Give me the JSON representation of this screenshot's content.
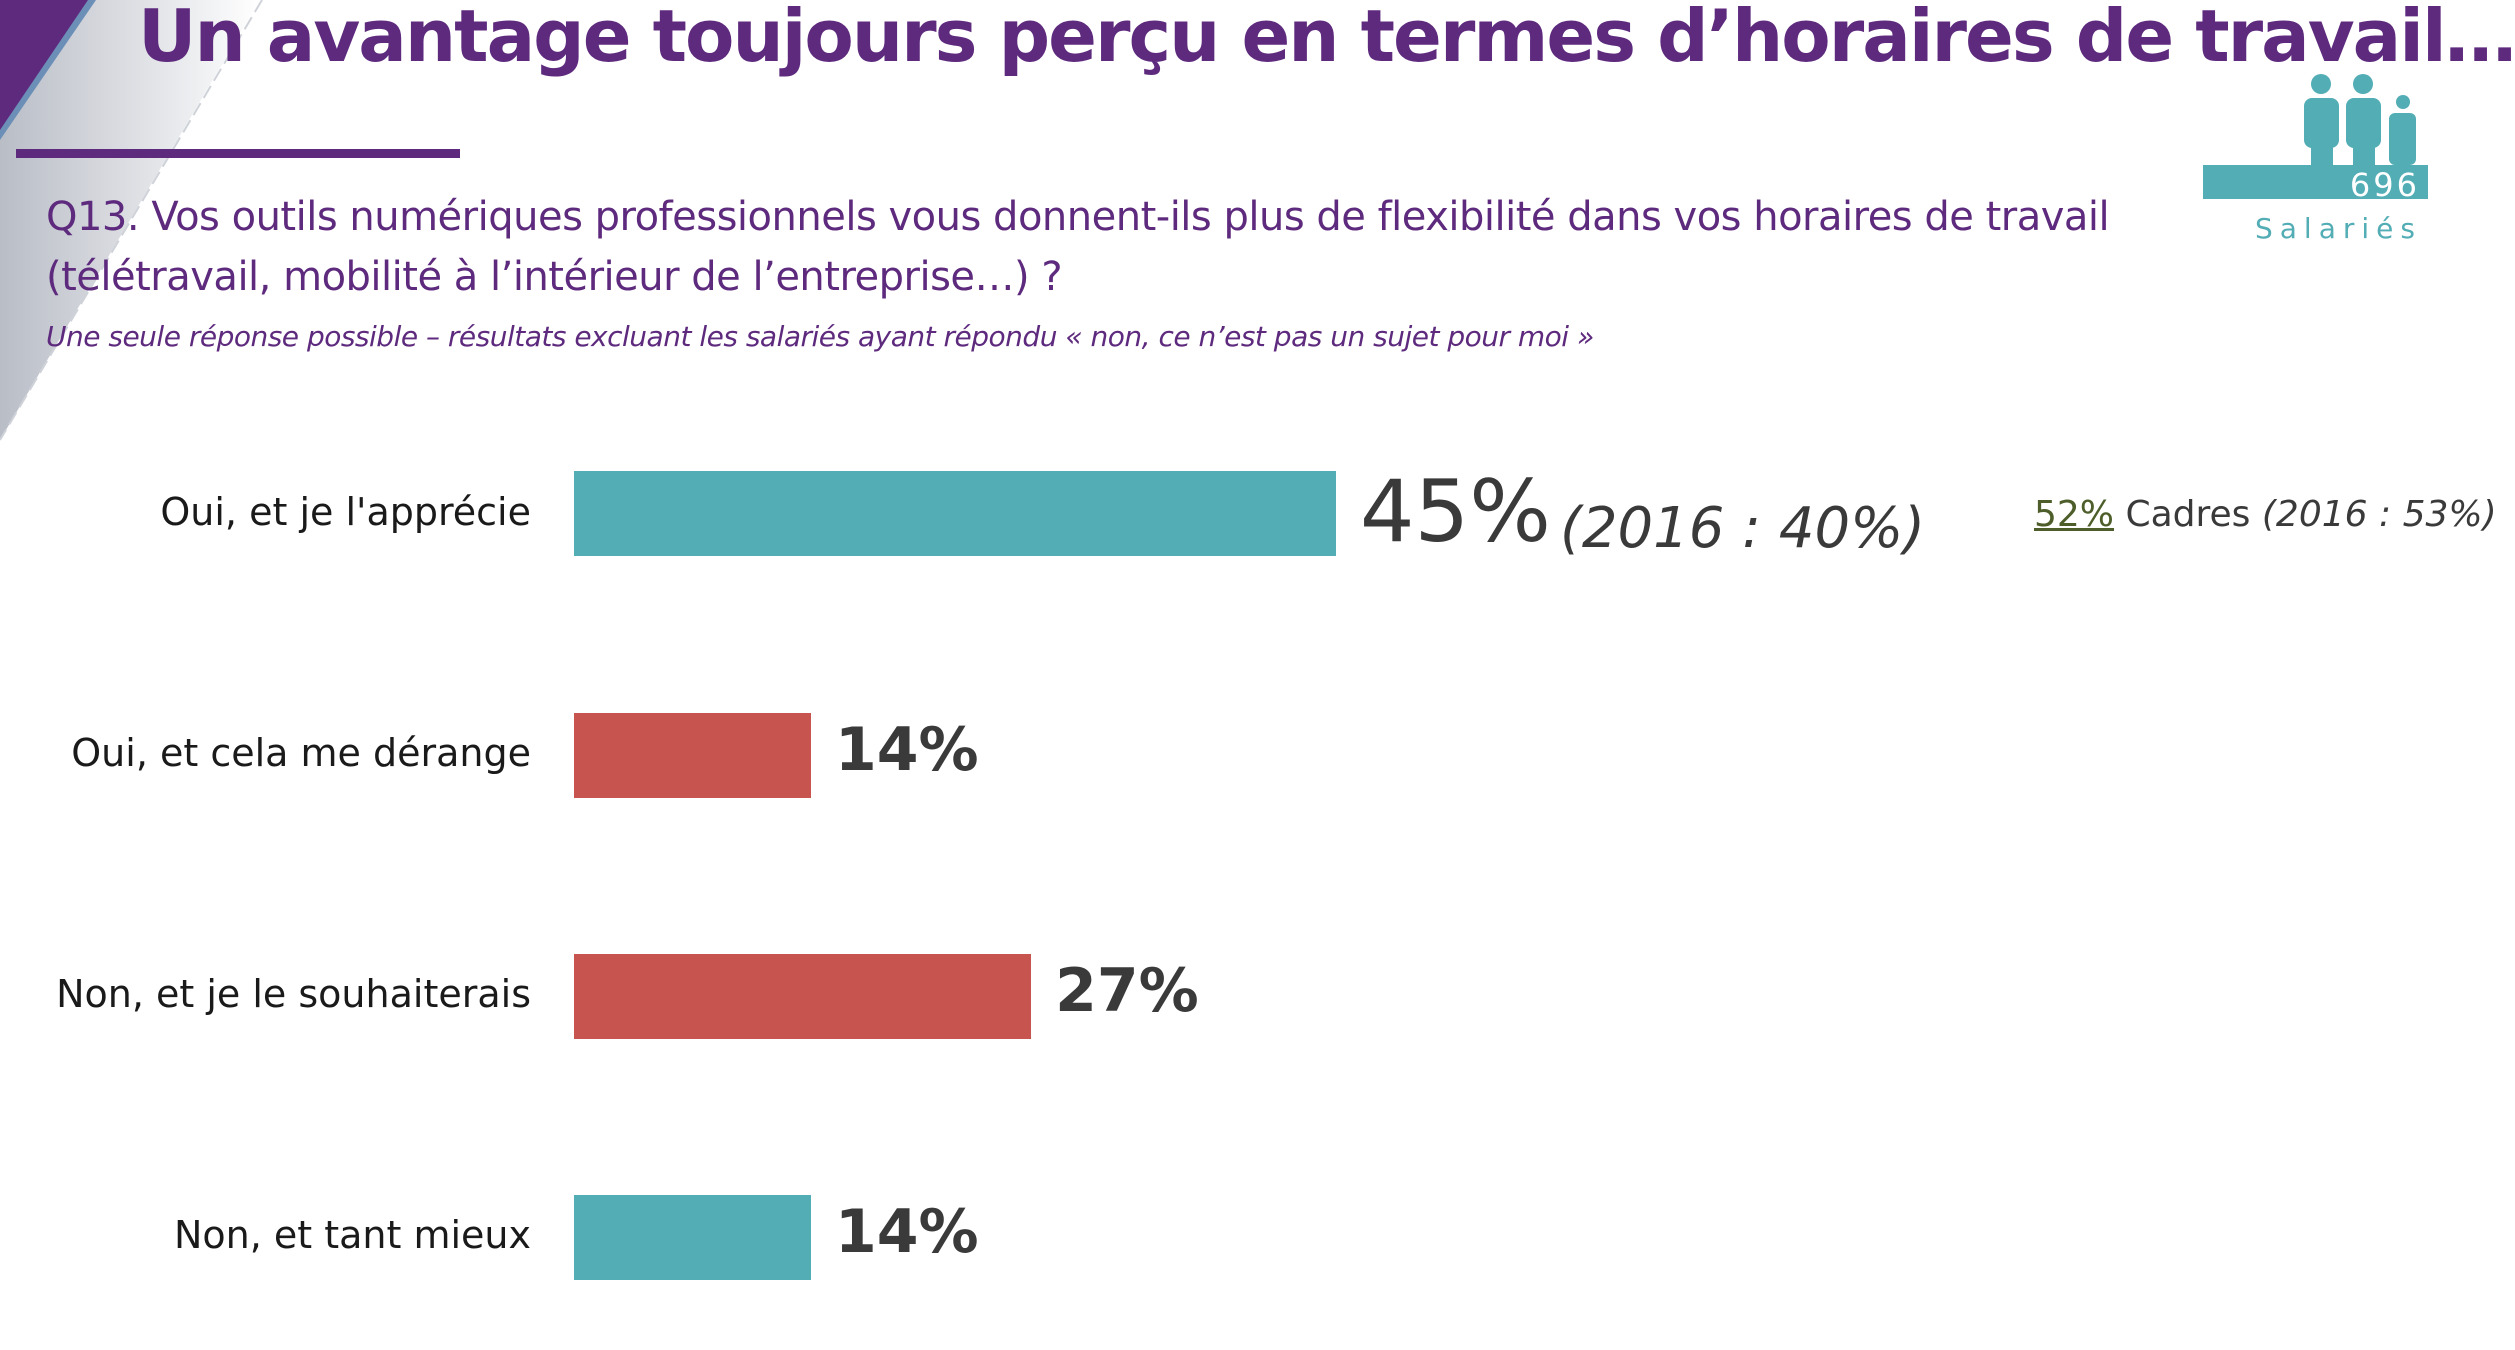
{
  "title": "Un avantage toujours perçu en termes d’horaires de travail…",
  "question_line1": "Q13. Vos outils numériques professionnels vous donnent-ils plus de flexibilité dans vos horaires de travail",
  "question_line2": "(télétravail, mobilité à l’intérieur de l’entreprise…) ?",
  "subtitle": "Une seule réponse possible  – résultats excluant les salariés ayant répondu « non, ce n’est pas un sujet pour moi »",
  "logo": {
    "count": "696",
    "label": "Salariés",
    "icon": "people-group-icon",
    "color": "#52adb5"
  },
  "colors": {
    "purple": "#5e2a7e",
    "teal": "#52adb5",
    "red": "#c85450"
  },
  "chart_data": {
    "type": "bar",
    "orientation": "horizontal",
    "categories": [
      "Oui, et je l'apprécie",
      "Oui, et cela me dérange",
      "Non, et je le souhaiterais",
      "Non, et tant mieux"
    ],
    "values": [
      45,
      14,
      27,
      14
    ],
    "value_labels": [
      "45%",
      "14%",
      "27%",
      "14%"
    ],
    "bar_colors": [
      "#52adb5",
      "#c85450",
      "#c85450",
      "#52adb5"
    ],
    "annotations": {
      "comparison": "(2016 : 40%)",
      "cadres_value": "52%",
      "cadres_label": "Cadres",
      "cadres_comparison": "(2016 : 53%)"
    },
    "grid": false,
    "xlim": [
      0,
      100
    ]
  }
}
